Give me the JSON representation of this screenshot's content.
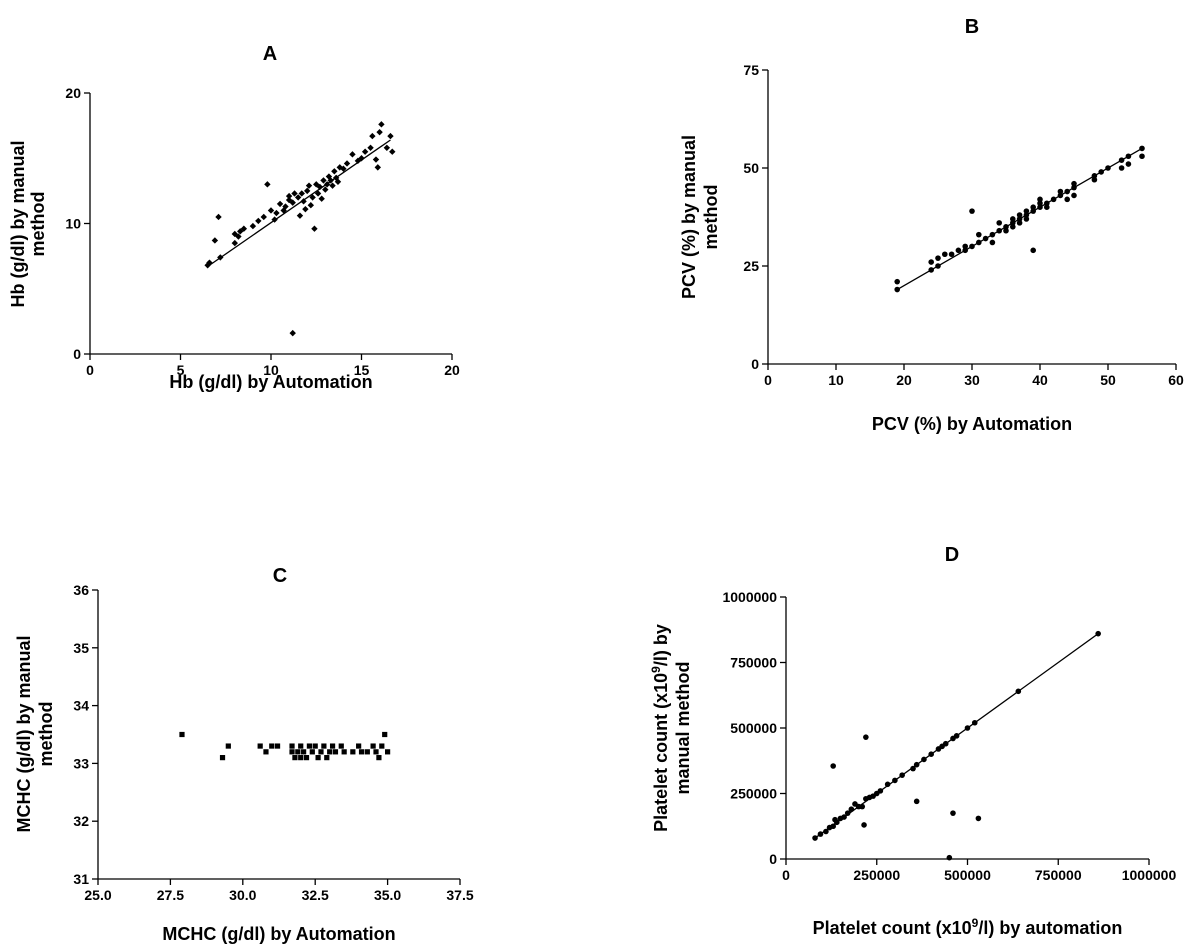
{
  "chart_data": [
    {
      "id": "A",
      "type": "scatter",
      "title": "A",
      "xlabel": "Hb (g/dl) by Automation",
      "ylabel_lines": [
        "Hb (g/dl) by manual",
        "method"
      ],
      "xlim": [
        0,
        20
      ],
      "ylim": [
        0,
        20
      ],
      "xticks": [
        0,
        5,
        10,
        15,
        20
      ],
      "xtick_labels": [
        "0",
        "5",
        "10",
        "15",
        "20"
      ],
      "yticks": [
        0,
        10,
        20
      ],
      "ytick_labels": [
        "0",
        "10",
        "20"
      ],
      "marker": "diamond",
      "fit_line": [
        [
          6.6,
          6.8
        ],
        [
          16.6,
          16.4
        ]
      ],
      "points": [
        [
          6.5,
          6.8
        ],
        [
          6.6,
          7.0
        ],
        [
          6.9,
          8.7
        ],
        [
          7.1,
          10.5
        ],
        [
          7.2,
          7.4
        ],
        [
          8.0,
          8.5
        ],
        [
          8.0,
          9.2
        ],
        [
          8.2,
          9.0
        ],
        [
          8.3,
          9.4
        ],
        [
          8.5,
          9.6
        ],
        [
          9.0,
          9.8
        ],
        [
          9.3,
          10.2
        ],
        [
          9.6,
          10.5
        ],
        [
          9.8,
          13.0
        ],
        [
          10.0,
          11.0
        ],
        [
          10.2,
          10.3
        ],
        [
          10.3,
          10.8
        ],
        [
          10.5,
          11.5
        ],
        [
          10.7,
          11.0
        ],
        [
          10.8,
          11.3
        ],
        [
          11.0,
          11.8
        ],
        [
          11.0,
          12.1
        ],
        [
          11.2,
          11.6
        ],
        [
          11.3,
          12.3
        ],
        [
          11.5,
          12.0
        ],
        [
          11.6,
          10.6
        ],
        [
          11.7,
          12.3
        ],
        [
          11.8,
          11.7
        ],
        [
          11.9,
          11.1
        ],
        [
          12.0,
          12.5
        ],
        [
          12.1,
          12.9
        ],
        [
          12.2,
          11.4
        ],
        [
          12.3,
          12.0
        ],
        [
          12.4,
          9.6
        ],
        [
          12.5,
          13.0
        ],
        [
          12.6,
          12.3
        ],
        [
          12.7,
          12.8
        ],
        [
          12.8,
          11.9
        ],
        [
          12.9,
          13.3
        ],
        [
          13.0,
          12.6
        ],
        [
          13.1,
          13.0
        ],
        [
          13.2,
          13.6
        ],
        [
          13.3,
          13.3
        ],
        [
          13.4,
          12.9
        ],
        [
          13.5,
          14.0
        ],
        [
          13.6,
          13.5
        ],
        [
          13.7,
          13.2
        ],
        [
          13.8,
          14.3
        ],
        [
          14.0,
          14.2
        ],
        [
          14.2,
          14.6
        ],
        [
          14.5,
          15.3
        ],
        [
          14.8,
          14.8
        ],
        [
          15.0,
          15.0
        ],
        [
          15.2,
          15.5
        ],
        [
          15.5,
          15.8
        ],
        [
          15.6,
          16.7
        ],
        [
          15.8,
          14.9
        ],
        [
          15.9,
          14.3
        ],
        [
          16.0,
          17.0
        ],
        [
          16.1,
          17.6
        ],
        [
          16.4,
          15.8
        ],
        [
          16.6,
          16.7
        ],
        [
          16.7,
          15.5
        ],
        [
          11.2,
          1.6
        ]
      ]
    },
    {
      "id": "B",
      "type": "scatter",
      "title": "B",
      "xlabel": "PCV (%) by Automation",
      "ylabel_lines": [
        "PCV (%) by manual",
        "method"
      ],
      "xlim": [
        0,
        60
      ],
      "ylim": [
        0,
        75
      ],
      "xticks": [
        0,
        10,
        20,
        30,
        40,
        50,
        60
      ],
      "xtick_labels": [
        "0",
        "10",
        "20",
        "30",
        "40",
        "50",
        "60"
      ],
      "yticks": [
        0,
        25,
        50,
        75
      ],
      "ytick_labels": [
        "0",
        "25",
        "50",
        "75"
      ],
      "marker": "circle",
      "fit_line": [
        [
          19,
          19
        ],
        [
          55,
          55
        ]
      ],
      "points": [
        [
          19,
          19
        ],
        [
          19,
          21
        ],
        [
          24,
          24
        ],
        [
          24,
          26
        ],
        [
          25,
          25
        ],
        [
          25,
          27
        ],
        [
          26,
          28
        ],
        [
          27,
          28
        ],
        [
          28,
          29
        ],
        [
          29,
          29
        ],
        [
          29,
          30
        ],
        [
          30,
          30
        ],
        [
          30,
          39
        ],
        [
          31,
          31
        ],
        [
          31,
          33
        ],
        [
          32,
          32
        ],
        [
          33,
          33
        ],
        [
          33,
          31
        ],
        [
          34,
          34
        ],
        [
          34,
          36
        ],
        [
          35,
          35
        ],
        [
          35,
          34
        ],
        [
          36,
          36
        ],
        [
          36,
          37
        ],
        [
          36,
          35
        ],
        [
          37,
          37
        ],
        [
          37,
          38
        ],
        [
          37,
          36
        ],
        [
          38,
          38
        ],
        [
          38,
          39
        ],
        [
          38,
          37
        ],
        [
          39,
          39
        ],
        [
          39,
          40
        ],
        [
          39,
          29
        ],
        [
          40,
          40
        ],
        [
          40,
          41
        ],
        [
          40,
          42
        ],
        [
          41,
          41
        ],
        [
          41,
          40
        ],
        [
          42,
          42
        ],
        [
          43,
          43
        ],
        [
          43,
          44
        ],
        [
          44,
          44
        ],
        [
          44,
          42
        ],
        [
          45,
          45
        ],
        [
          45,
          46
        ],
        [
          45,
          43
        ],
        [
          48,
          48
        ],
        [
          48,
          47
        ],
        [
          49,
          49
        ],
        [
          50,
          50
        ],
        [
          52,
          52
        ],
        [
          52,
          50
        ],
        [
          53,
          53
        ],
        [
          53,
          51
        ],
        [
          55,
          55
        ],
        [
          55,
          53
        ]
      ]
    },
    {
      "id": "C",
      "type": "scatter",
      "title": "C",
      "xlabel": "MCHC (g/dl) by Automation",
      "ylabel_lines": [
        "MCHC (g/dl) by manual",
        "method"
      ],
      "xlim": [
        25,
        37.5
      ],
      "ylim": [
        31,
        36
      ],
      "xticks": [
        25,
        27.5,
        30,
        32.5,
        35,
        37.5
      ],
      "xtick_labels": [
        "25.0",
        "27.5",
        "30.0",
        "32.5",
        "35.0",
        "37.5"
      ],
      "yticks": [
        31,
        32,
        33,
        34,
        35,
        36
      ],
      "ytick_labels": [
        "31",
        "32",
        "33",
        "34",
        "35",
        "36"
      ],
      "marker": "square",
      "points": [
        [
          27.9,
          33.5
        ],
        [
          29.3,
          33.1
        ],
        [
          29.5,
          33.3
        ],
        [
          30.6,
          33.3
        ],
        [
          30.8,
          33.2
        ],
        [
          31.0,
          33.3
        ],
        [
          31.2,
          33.3
        ],
        [
          31.7,
          33.3
        ],
        [
          31.7,
          33.2
        ],
        [
          31.8,
          33.1
        ],
        [
          31.9,
          33.2
        ],
        [
          32.0,
          33.3
        ],
        [
          32.0,
          33.1
        ],
        [
          32.1,
          33.2
        ],
        [
          32.2,
          33.1
        ],
        [
          32.3,
          33.3
        ],
        [
          32.4,
          33.2
        ],
        [
          32.5,
          33.3
        ],
        [
          32.6,
          33.1
        ],
        [
          32.7,
          33.2
        ],
        [
          32.8,
          33.3
        ],
        [
          32.9,
          33.1
        ],
        [
          33.0,
          33.2
        ],
        [
          33.1,
          33.3
        ],
        [
          33.2,
          33.2
        ],
        [
          33.4,
          33.3
        ],
        [
          33.5,
          33.2
        ],
        [
          33.8,
          33.2
        ],
        [
          34.0,
          33.3
        ],
        [
          34.1,
          33.2
        ],
        [
          34.3,
          33.2
        ],
        [
          34.5,
          33.3
        ],
        [
          34.6,
          33.2
        ],
        [
          34.7,
          33.1
        ],
        [
          34.8,
          33.3
        ],
        [
          34.9,
          33.5
        ],
        [
          35.0,
          33.2
        ]
      ]
    },
    {
      "id": "D",
      "type": "scatter",
      "title": "D",
      "xlabel_parts": [
        "Platelet count (x10",
        "9",
        "/l) by automation"
      ],
      "ylabel_lines": [
        [
          "Platelet count (x10",
          "9",
          "/l) by"
        ],
        [
          "manual method"
        ]
      ],
      "xlim": [
        0,
        1000000
      ],
      "ylim": [
        0,
        1000000
      ],
      "xticks": [
        0,
        250000,
        500000,
        750000,
        1000000
      ],
      "xtick_labels": [
        "0",
        "250000",
        "500000",
        "750000",
        "1000000"
      ],
      "yticks": [
        0,
        250000,
        500000,
        750000,
        1000000
      ],
      "ytick_labels": [
        "0",
        "250000",
        "500000",
        "750000",
        "1000000"
      ],
      "marker": "circle",
      "fit_line": [
        [
          80000,
          80000
        ],
        [
          860000,
          860000
        ]
      ],
      "points": [
        [
          80000,
          80000
        ],
        [
          95000,
          95000
        ],
        [
          110000,
          105000
        ],
        [
          120000,
          120000
        ],
        [
          130000,
          125000
        ],
        [
          135000,
          150000
        ],
        [
          140000,
          140000
        ],
        [
          150000,
          155000
        ],
        [
          160000,
          160000
        ],
        [
          170000,
          175000
        ],
        [
          180000,
          190000
        ],
        [
          190000,
          210000
        ],
        [
          200000,
          200000
        ],
        [
          210000,
          200000
        ],
        [
          220000,
          230000
        ],
        [
          230000,
          235000
        ],
        [
          240000,
          240000
        ],
        [
          250000,
          250000
        ],
        [
          260000,
          260000
        ],
        [
          280000,
          285000
        ],
        [
          300000,
          300000
        ],
        [
          320000,
          320000
        ],
        [
          350000,
          345000
        ],
        [
          360000,
          360000
        ],
        [
          380000,
          380000
        ],
        [
          400000,
          400000
        ],
        [
          420000,
          420000
        ],
        [
          430000,
          430000
        ],
        [
          440000,
          440000
        ],
        [
          460000,
          460000
        ],
        [
          470000,
          470000
        ],
        [
          500000,
          500000
        ],
        [
          520000,
          520000
        ],
        [
          640000,
          640000
        ],
        [
          860000,
          860000
        ],
        [
          130000,
          355000
        ],
        [
          220000,
          465000
        ],
        [
          215000,
          130000
        ],
        [
          360000,
          220000
        ],
        [
          460000,
          175000
        ],
        [
          530000,
          155000
        ],
        [
          450000,
          5000
        ]
      ]
    }
  ]
}
